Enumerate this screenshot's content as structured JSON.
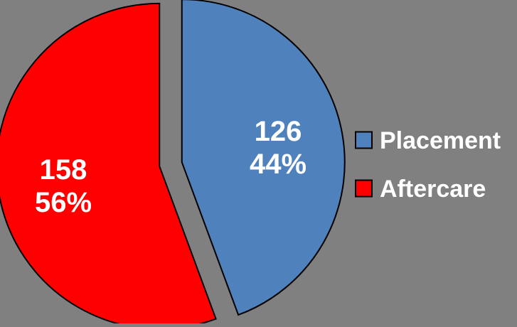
{
  "chart_data": {
    "type": "pie",
    "title": "",
    "series": [
      {
        "name": "Placement",
        "value": 126,
        "percent_label": "44%",
        "color": "#4f81bd"
      },
      {
        "name": "Aftercare",
        "value": 158,
        "percent_label": "56%",
        "color": "#ff0000"
      }
    ],
    "legend_position": "right",
    "exploded": true,
    "background_color": "#808080",
    "label_color": "#ffffff",
    "outline_color": "#000000"
  }
}
